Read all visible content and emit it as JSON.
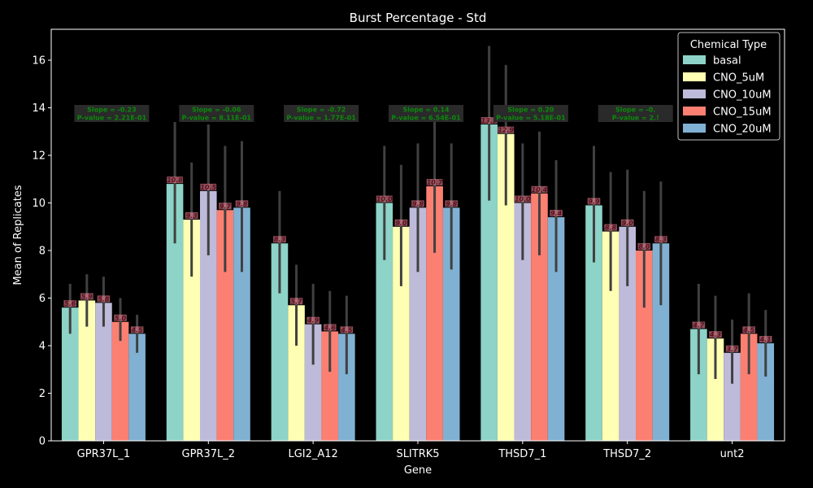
{
  "chart_data": {
    "type": "bar",
    "title": "Burst Percentage - Std",
    "xlabel": "Gene",
    "ylabel": "Mean of Replicates",
    "ylim": [
      0,
      17.3
    ],
    "yticks": [
      0,
      2,
      4,
      6,
      8,
      10,
      12,
      14,
      16
    ],
    "grid": false,
    "legend": {
      "title": "Chemical Type",
      "position": "top-right"
    },
    "categories": [
      "GPR37L_1",
      "GPR37L_2",
      "LGI2_A12",
      "SLITRK5",
      "THSD7_1",
      "THSD7_2",
      "unt2"
    ],
    "series": [
      {
        "name": "basal",
        "color": "#8dd3c7",
        "values": [
          5.6,
          10.8,
          8.3,
          10.0,
          13.3,
          9.9,
          4.7
        ],
        "ci": [
          [
            4.5,
            6.6
          ],
          [
            8.3,
            13.4
          ],
          [
            6.2,
            10.5
          ],
          [
            7.6,
            12.4
          ],
          [
            10.1,
            16.6
          ],
          [
            7.5,
            12.4
          ],
          [
            2.8,
            6.6
          ]
        ]
      },
      {
        "name": "CNO_5uM",
        "color": "#ffffb3",
        "values": [
          5.9,
          9.3,
          5.7,
          9.0,
          12.9,
          8.8,
          4.3
        ],
        "ci": [
          [
            4.8,
            7.0
          ],
          [
            6.9,
            11.7
          ],
          [
            4.0,
            7.4
          ],
          [
            6.5,
            11.6
          ],
          [
            9.9,
            15.8
          ],
          [
            6.3,
            11.3
          ],
          [
            2.6,
            6.1
          ]
        ]
      },
      {
        "name": "CNO_10uM",
        "color": "#bebada",
        "values": [
          5.8,
          10.5,
          4.9,
          9.8,
          10.0,
          9.0,
          3.7
        ],
        "ci": [
          [
            4.8,
            6.9
          ],
          [
            7.8,
            13.3
          ],
          [
            3.2,
            6.6
          ],
          [
            7.1,
            12.5
          ],
          [
            7.6,
            12.5
          ],
          [
            6.5,
            11.4
          ],
          [
            2.4,
            5.1
          ]
        ]
      },
      {
        "name": "CNO_15uM",
        "color": "#fb8072",
        "values": [
          5.0,
          9.7,
          4.6,
          10.7,
          10.4,
          8.0,
          4.5
        ],
        "ci": [
          [
            4.2,
            6.0
          ],
          [
            7.1,
            12.4
          ],
          [
            2.9,
            6.3
          ],
          [
            7.9,
            13.5
          ],
          [
            7.8,
            13.0
          ],
          [
            5.6,
            10.5
          ],
          [
            2.8,
            6.2
          ]
        ]
      },
      {
        "name": "CNO_20uM",
        "color": "#80b1d3",
        "values": [
          4.5,
          9.8,
          4.5,
          9.8,
          9.4,
          8.3,
          4.1
        ],
        "ci": [
          [
            3.7,
            5.3
          ],
          [
            7.1,
            12.6
          ],
          [
            2.8,
            6.1
          ],
          [
            7.2,
            12.5
          ],
          [
            7.1,
            11.8
          ],
          [
            5.7,
            10.9
          ],
          [
            2.7,
            5.5
          ]
        ]
      }
    ],
    "value_labels": [
      [
        "5.6",
        "10.8",
        "8.3",
        "10.0",
        "13.3",
        "9.9",
        "4.7"
      ],
      [
        "5.9",
        "9.3",
        "5.7",
        "9.0",
        "12.9",
        "8.8",
        "4.3"
      ],
      [
        "5.8",
        "10.5",
        "4.9",
        "9.8",
        "10.0",
        "9.0",
        "3.7"
      ],
      [
        "5.0",
        "9.7",
        "4.6",
        "10.7",
        "10.4",
        "8.0",
        "4.5"
      ],
      [
        "4.5",
        "9.8",
        "4.5",
        "9.8",
        "9.4",
        "8.3",
        "4.1"
      ]
    ],
    "annotations": [
      {
        "line1": "Slope = -0.23",
        "line2": "P-value = 2.21E-01"
      },
      {
        "line1": "Slope = -0.06",
        "line2": "P-value = 8.11E-01"
      },
      {
        "line1": "Slope = -0.72",
        "line2": "P-value = 1.77E-01"
      },
      {
        "line1": "Slope = 0.14",
        "line2": "P-value = 6.54E-01"
      },
      {
        "line1": "Slope = 0.20",
        "line2": "P-value = 5.18E-01"
      },
      {
        "line1": "Slope = -0.",
        "line2": "P-value = 2.!"
      },
      {
        "line1": "",
        "line2": ""
      }
    ],
    "colors": {
      "background": "#000000",
      "axes": "#ffffff",
      "errorbar": "#404040",
      "value_label": "#ff9fae",
      "annotation_text": "#0a8a0a",
      "annotation_box": "#2a2a2a"
    }
  }
}
